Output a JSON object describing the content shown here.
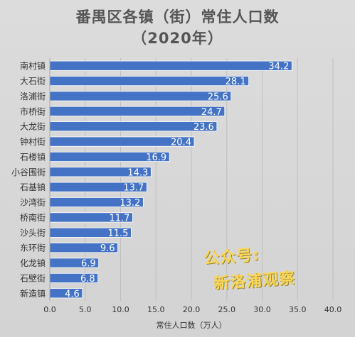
{
  "title": {
    "line1": "番禺区各镇（街）常住人口数",
    "line2": "（2020年）"
  },
  "watermark": {
    "line1": "公众号:",
    "line2": "新洛浦观察"
  },
  "colors": {
    "bar": "#4472c4",
    "grid": "#bfbfbf",
    "label": "#ffffff",
    "text": "#333333"
  },
  "chart_data": {
    "type": "bar",
    "orientation": "horizontal",
    "categories": [
      "南村镇",
      "大石街",
      "洛浦街",
      "市桥街",
      "大龙街",
      "钟村街",
      "石楼镇",
      "小谷围街",
      "石基镇",
      "沙湾街",
      "桥南街",
      "沙头街",
      "东环街",
      "化龙镇",
      "石壁街",
      "新造镇"
    ],
    "values": [
      34.2,
      28.1,
      25.6,
      24.7,
      23.6,
      20.4,
      16.9,
      14.3,
      13.7,
      13.2,
      11.7,
      11.5,
      9.6,
      6.9,
      6.8,
      4.6
    ],
    "value_labels": [
      "34.2",
      "28.1",
      "25.6",
      "24.7",
      "23.6",
      "20.4",
      "16.9",
      "14.3",
      "13.7",
      "13.2",
      "11.7",
      "11.5",
      "9.6",
      "6.9",
      "6.8",
      "4.6"
    ],
    "xlim": [
      0,
      40
    ],
    "xticks": [
      "0.0",
      "5.0",
      "10.0",
      "15.0",
      "20.0",
      "25.0",
      "30.0",
      "35.0",
      "40.0"
    ],
    "xlabel": "常住人口数（万人）",
    "grid": true
  }
}
